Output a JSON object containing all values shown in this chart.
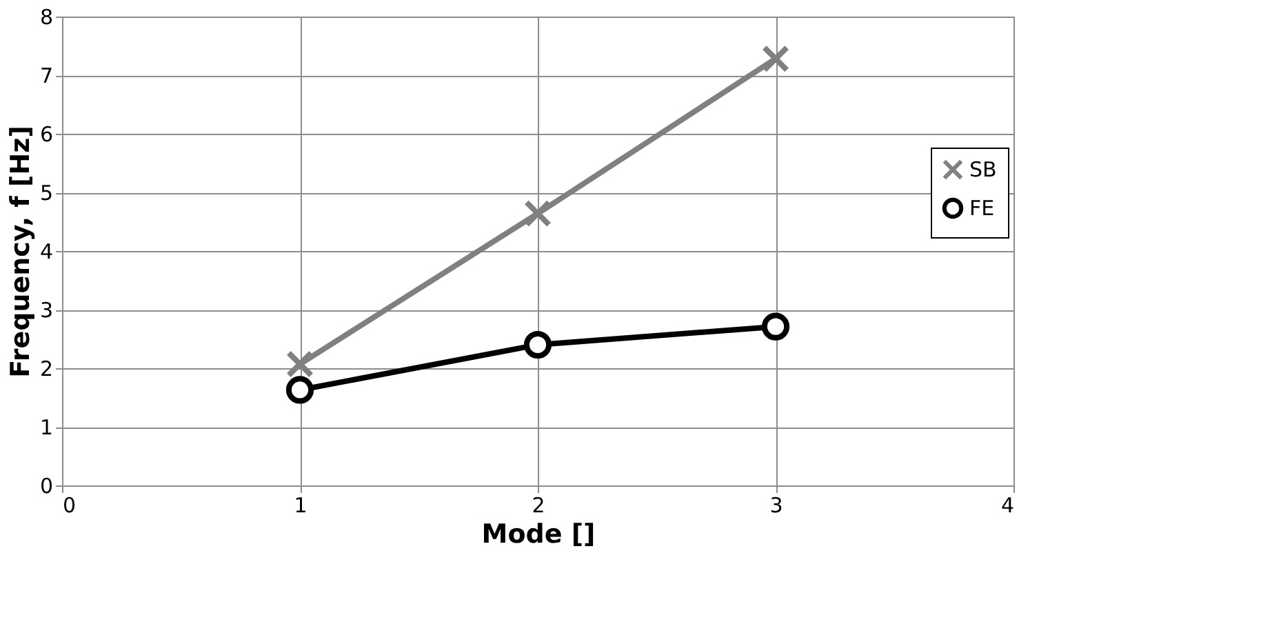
{
  "chart_data": {
    "type": "line",
    "xlabel": "Mode []",
    "ylabel": "Frequency, f [Hz]",
    "x": [
      1,
      2,
      3
    ],
    "series": [
      {
        "name": "SB",
        "color": "#808080",
        "marker": "cross",
        "values": [
          2.07,
          4.64,
          7.28
        ]
      },
      {
        "name": "FE",
        "color": "#000000",
        "marker": "circle",
        "values": [
          1.63,
          2.4,
          2.71
        ]
      }
    ],
    "xlim": [
      0,
      4
    ],
    "xticks": [
      0,
      1,
      2,
      3,
      4
    ],
    "ylim": [
      0,
      8
    ],
    "yticks": [
      0,
      1,
      2,
      3,
      4,
      5,
      6,
      7,
      8
    ],
    "grid": true,
    "legend": "right",
    "line_style": "solid"
  }
}
